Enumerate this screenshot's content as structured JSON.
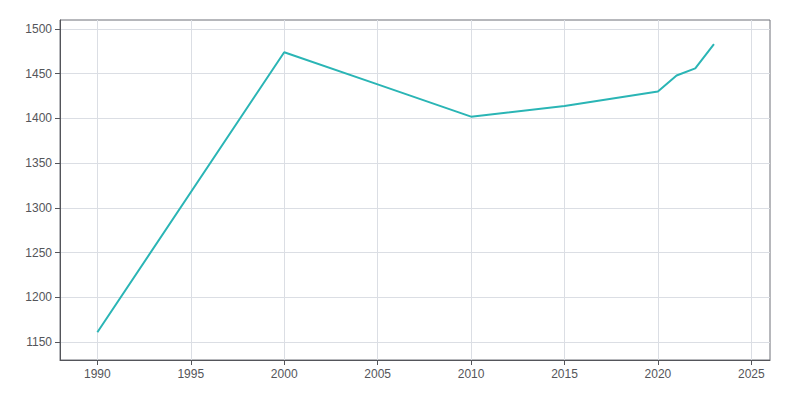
{
  "chart_data": {
    "type": "line",
    "x": [
      1990,
      2000,
      2005,
      2010,
      2015,
      2020,
      2021,
      2022,
      2023
    ],
    "values": [
      1161,
      1474,
      1438,
      1402,
      1414,
      1430,
      1448,
      1456,
      1483
    ],
    "color": "#2ab5b5",
    "xlim": [
      1988,
      2026
    ],
    "xticks": [
      1990,
      1995,
      2000,
      2005,
      2010,
      2015,
      2020,
      2025
    ],
    "ylim": [
      1130,
      1510
    ],
    "yticks": [
      1150,
      1200,
      1250,
      1300,
      1350,
      1400,
      1450,
      1500
    ],
    "grid": true
  }
}
